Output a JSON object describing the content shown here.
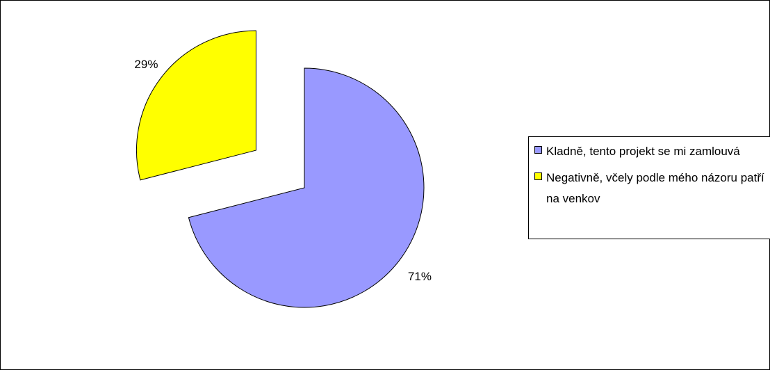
{
  "chart_data": {
    "type": "pie",
    "categories": [
      "Kladně, tento projekt se mi zamlouvá",
      "Negativně, včely podle mého názoru patří na venkov"
    ],
    "values": [
      71,
      29
    ],
    "value_labels": [
      "71%",
      "29%"
    ],
    "colors": [
      "#9999ff",
      "#ffff00"
    ],
    "legend": "right"
  }
}
